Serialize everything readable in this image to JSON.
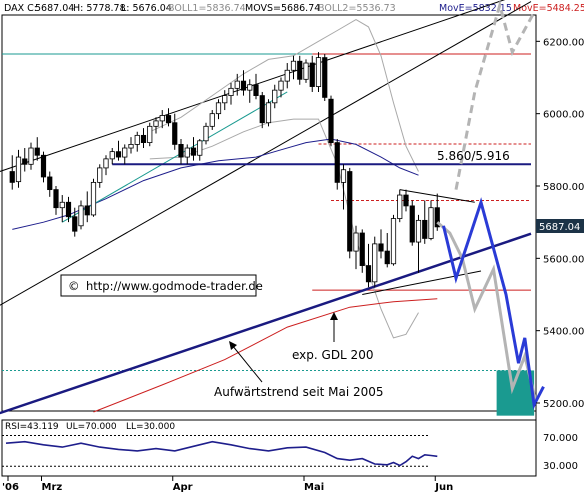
{
  "header": {
    "symbol": "DAX C:",
    "close": "5687.04",
    "high": "H: 5778.78",
    "low": "L: 5676.04",
    "boll1": "BOLL1=5836.74",
    "movs": "MOVS=5686.74",
    "boll2": "BOLL2=5536.73",
    "move_a": "MovE=5832.15",
    "move_b": "MovE=5484.25"
  },
  "colors": {
    "background": "#ffffff",
    "candle_up": "#ffffff",
    "candle_down": "#000000",
    "trend_navy": "#1a1a80",
    "projection_blue": "#2a3bd6",
    "projection_grey": "#b4b4b4",
    "ma200_red": "#cc1f1f",
    "bollinger_grey": "#a9a9a9",
    "mov_blue": "#1e1e8c",
    "teal": "#1a9a90",
    "price_marker": "#1c3347"
  },
  "chart_data": {
    "type": "candlestick",
    "title": "DAX",
    "y_axis": {
      "ticks": [
        5200,
        5400,
        5600,
        5800,
        6000,
        6200
      ],
      "tick_labels": [
        "5200.00",
        "5400.00",
        "5600.00",
        "5800.00",
        "6000.00",
        "6200.00"
      ],
      "range": [
        5155,
        6330
      ],
      "side": "right"
    },
    "x_axis": {
      "labels": [
        "'06",
        "Mrz",
        "Apr",
        "Mai",
        "Jun"
      ],
      "positions": [
        0,
        6,
        27,
        48,
        69
      ]
    },
    "last_price": "5687.04",
    "ohlc": [
      {
        "i": 1,
        "o": 5840,
        "h": 5885,
        "l": 5790,
        "c": 5810
      },
      {
        "i": 2,
        "o": 5812,
        "h": 5900,
        "l": 5795,
        "c": 5880
      },
      {
        "i": 3,
        "o": 5875,
        "h": 5905,
        "l": 5840,
        "c": 5860
      },
      {
        "i": 4,
        "o": 5860,
        "h": 5920,
        "l": 5845,
        "c": 5905
      },
      {
        "i": 5,
        "o": 5905,
        "h": 5935,
        "l": 5870,
        "c": 5885
      },
      {
        "i": 6,
        "o": 5885,
        "h": 5895,
        "l": 5810,
        "c": 5825
      },
      {
        "i": 7,
        "o": 5825,
        "h": 5840,
        "l": 5770,
        "c": 5790
      },
      {
        "i": 8,
        "o": 5790,
        "h": 5800,
        "l": 5720,
        "c": 5740
      },
      {
        "i": 9,
        "o": 5740,
        "h": 5775,
        "l": 5700,
        "c": 5755
      },
      {
        "i": 10,
        "o": 5755,
        "h": 5770,
        "l": 5700,
        "c": 5715
      },
      {
        "i": 11,
        "o": 5715,
        "h": 5740,
        "l": 5660,
        "c": 5675
      },
      {
        "i": 12,
        "o": 5690,
        "h": 5760,
        "l": 5680,
        "c": 5745
      },
      {
        "i": 13,
        "o": 5745,
        "h": 5785,
        "l": 5700,
        "c": 5720
      },
      {
        "i": 14,
        "o": 5720,
        "h": 5820,
        "l": 5715,
        "c": 5810
      },
      {
        "i": 15,
        "o": 5810,
        "h": 5860,
        "l": 5795,
        "c": 5850
      },
      {
        "i": 16,
        "o": 5850,
        "h": 5885,
        "l": 5830,
        "c": 5875
      },
      {
        "i": 17,
        "o": 5875,
        "h": 5905,
        "l": 5860,
        "c": 5895
      },
      {
        "i": 18,
        "o": 5895,
        "h": 5925,
        "l": 5870,
        "c": 5880
      },
      {
        "i": 19,
        "o": 5880,
        "h": 5915,
        "l": 5860,
        "c": 5905
      },
      {
        "i": 20,
        "o": 5905,
        "h": 5935,
        "l": 5890,
        "c": 5915
      },
      {
        "i": 21,
        "o": 5915,
        "h": 5950,
        "l": 5895,
        "c": 5940
      },
      {
        "i": 22,
        "o": 5940,
        "h": 5960,
        "l": 5905,
        "c": 5920
      },
      {
        "i": 23,
        "o": 5920,
        "h": 5975,
        "l": 5910,
        "c": 5965
      },
      {
        "i": 24,
        "o": 5965,
        "h": 5990,
        "l": 5945,
        "c": 5980
      },
      {
        "i": 25,
        "o": 5980,
        "h": 6010,
        "l": 5960,
        "c": 5995
      },
      {
        "i": 26,
        "o": 5995,
        "h": 6015,
        "l": 5965,
        "c": 5975
      },
      {
        "i": 27,
        "o": 5975,
        "h": 6000,
        "l": 5900,
        "c": 5915
      },
      {
        "i": 28,
        "o": 5915,
        "h": 5930,
        "l": 5860,
        "c": 5880
      },
      {
        "i": 29,
        "o": 5880,
        "h": 5915,
        "l": 5860,
        "c": 5905
      },
      {
        "i": 30,
        "o": 5905,
        "h": 5935,
        "l": 5870,
        "c": 5885
      },
      {
        "i": 31,
        "o": 5885,
        "h": 5930,
        "l": 5870,
        "c": 5925
      },
      {
        "i": 32,
        "o": 5925,
        "h": 5975,
        "l": 5915,
        "c": 5965
      },
      {
        "i": 33,
        "o": 5965,
        "h": 6010,
        "l": 5955,
        "c": 6000
      },
      {
        "i": 34,
        "o": 6000,
        "h": 6040,
        "l": 5985,
        "c": 6030
      },
      {
        "i": 35,
        "o": 6030,
        "h": 6065,
        "l": 6010,
        "c": 6050
      },
      {
        "i": 36,
        "o": 6050,
        "h": 6085,
        "l": 6025,
        "c": 6070
      },
      {
        "i": 37,
        "o": 6070,
        "h": 6110,
        "l": 6050,
        "c": 6090
      },
      {
        "i": 38,
        "o": 6090,
        "h": 6120,
        "l": 6050,
        "c": 6065
      },
      {
        "i": 39,
        "o": 6065,
        "h": 6095,
        "l": 6030,
        "c": 6080
      },
      {
        "i": 40,
        "o": 6080,
        "h": 6110,
        "l": 6040,
        "c": 6050
      },
      {
        "i": 41,
        "o": 6050,
        "h": 6060,
        "l": 5960,
        "c": 5975
      },
      {
        "i": 42,
        "o": 5975,
        "h": 6040,
        "l": 5965,
        "c": 6030
      },
      {
        "i": 43,
        "o": 6030,
        "h": 6080,
        "l": 6015,
        "c": 6065
      },
      {
        "i": 44,
        "o": 6065,
        "h": 6100,
        "l": 6045,
        "c": 6090
      },
      {
        "i": 45,
        "o": 6090,
        "h": 6140,
        "l": 6070,
        "c": 6120
      },
      {
        "i": 46,
        "o": 6120,
        "h": 6160,
        "l": 6095,
        "c": 6145
      },
      {
        "i": 47,
        "o": 6145,
        "h": 6160,
        "l": 6080,
        "c": 6095
      },
      {
        "i": 48,
        "o": 6095,
        "h": 6150,
        "l": 6085,
        "c": 6140
      },
      {
        "i": 49,
        "o": 6140,
        "h": 6160,
        "l": 6060,
        "c": 6075
      },
      {
        "i": 50,
        "o": 6075,
        "h": 6170,
        "l": 6060,
        "c": 6155
      },
      {
        "i": 51,
        "o": 6155,
        "h": 6165,
        "l": 6035,
        "c": 6045
      },
      {
        "i": 52,
        "o": 6040,
        "h": 6050,
        "l": 5910,
        "c": 5920
      },
      {
        "i": 53,
        "o": 5920,
        "h": 5930,
        "l": 5790,
        "c": 5810
      },
      {
        "i": 54,
        "o": 5810,
        "h": 5860,
        "l": 5735,
        "c": 5845
      },
      {
        "i": 55,
        "o": 5840,
        "h": 5850,
        "l": 5600,
        "c": 5620
      },
      {
        "i": 56,
        "o": 5620,
        "h": 5690,
        "l": 5570,
        "c": 5670
      },
      {
        "i": 57,
        "o": 5670,
        "h": 5680,
        "l": 5560,
        "c": 5580
      },
      {
        "i": 58,
        "o": 5580,
        "h": 5640,
        "l": 5520,
        "c": 5535
      },
      {
        "i": 59,
        "o": 5535,
        "h": 5660,
        "l": 5520,
        "c": 5640
      },
      {
        "i": 60,
        "o": 5640,
        "h": 5680,
        "l": 5600,
        "c": 5620
      },
      {
        "i": 61,
        "o": 5620,
        "h": 5670,
        "l": 5575,
        "c": 5585
      },
      {
        "i": 62,
        "o": 5585,
        "h": 5720,
        "l": 5580,
        "c": 5710
      },
      {
        "i": 63,
        "o": 5710,
        "h": 5790,
        "l": 5700,
        "c": 5775
      },
      {
        "i": 64,
        "o": 5775,
        "h": 5790,
        "l": 5730,
        "c": 5745
      },
      {
        "i": 65,
        "o": 5745,
        "h": 5760,
        "l": 5635,
        "c": 5645
      },
      {
        "i": 66,
        "o": 5645,
        "h": 5720,
        "l": 5560,
        "c": 5705
      },
      {
        "i": 67,
        "o": 5705,
        "h": 5760,
        "l": 5640,
        "c": 5655
      },
      {
        "i": 68,
        "o": 5655,
        "h": 5760,
        "l": 5650,
        "c": 5740
      },
      {
        "i": 69,
        "o": 5740,
        "h": 5779,
        "l": 5676,
        "c": 5687
      }
    ],
    "moving_average_blue": [
      [
        1,
        5680
      ],
      [
        6,
        5700
      ],
      [
        10,
        5720
      ],
      [
        16,
        5765
      ],
      [
        22,
        5815
      ],
      [
        28,
        5850
      ],
      [
        34,
        5870
      ],
      [
        40,
        5880
      ],
      [
        44,
        5900
      ],
      [
        48,
        5920
      ],
      [
        52,
        5930
      ],
      [
        56,
        5915
      ],
      [
        60,
        5880
      ],
      [
        63,
        5850
      ],
      [
        66,
        5830
      ]
    ],
    "bollinger_upper": [
      [
        23,
        5950
      ],
      [
        28,
        5990
      ],
      [
        33,
        6050
      ],
      [
        38,
        6110
      ],
      [
        42,
        6150
      ],
      [
        46,
        6160
      ],
      [
        50,
        6200
      ],
      [
        53,
        6230
      ],
      [
        56,
        6260
      ],
      [
        58,
        6240
      ],
      [
        60,
        6160
      ],
      [
        62,
        6030
      ],
      [
        64,
        5910
      ],
      [
        66,
        5840
      ]
    ],
    "bollinger_lower": [
      [
        23,
        5875
      ],
      [
        28,
        5880
      ],
      [
        33,
        5910
      ],
      [
        38,
        5950
      ],
      [
        42,
        5975
      ],
      [
        46,
        5985
      ],
      [
        50,
        5985
      ],
      [
        53,
        5860
      ],
      [
        56,
        5650
      ],
      [
        58,
        5560
      ],
      [
        60,
        5460
      ],
      [
        62,
        5380
      ],
      [
        64,
        5390
      ],
      [
        66,
        5450
      ]
    ],
    "ma200_red": [
      [
        14,
        5175
      ],
      [
        25,
        5250
      ],
      [
        35,
        5320
      ],
      [
        45,
        5410
      ],
      [
        55,
        5465
      ],
      [
        62,
        5480
      ],
      [
        69,
        5488
      ]
    ],
    "long_trendline_navy": [
      [
        -1,
        5172
      ],
      [
        84,
        5668
      ]
    ],
    "channel_upper": [
      [
        -1,
        5840
      ],
      [
        84,
        6340
      ]
    ],
    "channel_lower": [
      [
        -1,
        5470
      ],
      [
        84,
        6310
      ]
    ],
    "resistance_5860_5916": [
      [
        17,
        5860
      ],
      [
        84,
        5860
      ]
    ],
    "horizontal_levels": [
      {
        "value": 6165,
        "color": "#cc1f1f",
        "from": 49,
        "to": 84
      },
      {
        "value": 5916,
        "color": "#cc1f1f",
        "from": 50,
        "to": 84,
        "dashed": true
      },
      {
        "value": 5760,
        "color": "#cc1f1f",
        "from": 52,
        "to": 84,
        "dashed": true
      },
      {
        "value": 5512,
        "color": "#cc1f1f",
        "from": 49,
        "to": 84
      },
      {
        "value": 6165,
        "color": "#1a9a90",
        "from": -1,
        "to": 49
      },
      {
        "value": 5290,
        "color": "#1a9a90",
        "from": -1,
        "to": 84,
        "dotted": true
      }
    ],
    "projection_blue": [
      [
        70,
        5690
      ],
      [
        72,
        5545
      ],
      [
        74,
        5650
      ],
      [
        76,
        5755
      ],
      [
        80,
        5500
      ],
      [
        82,
        5310
      ],
      [
        83,
        5380
      ],
      [
        84.5,
        5195
      ],
      [
        86,
        5245
      ]
    ],
    "projection_grey": [
      [
        69,
        5700
      ],
      [
        71,
        5670
      ],
      [
        73,
        5600
      ],
      [
        75,
        5460
      ],
      [
        78,
        5570
      ],
      [
        81,
        5240
      ],
      [
        83,
        5330
      ],
      [
        84.7,
        5210
      ]
    ],
    "projection_grey_dashed": [
      [
        72,
        5790
      ],
      [
        75,
        6060
      ],
      [
        79,
        6300
      ],
      [
        81,
        6170
      ],
      [
        84.5,
        6280
      ]
    ],
    "triangle_lines": [
      [
        [
          63,
          5790
        ],
        [
          75,
          5755
        ]
      ],
      [
        [
          57,
          5500
        ],
        [
          76,
          5565
        ]
      ]
    ],
    "teal_box": {
      "from": 78.5,
      "to": 84.5,
      "top": 5290,
      "bottom": 5165
    },
    "annotations": {
      "resistance": "5.860/5.916",
      "ma200": "exp. GDL 200",
      "trend": "Aufwärtstrend seit Mai 2005",
      "copyright": "http://www.godmode-trader.de"
    },
    "rsi": {
      "label": "RSI=43.119",
      "ul_label": "UL=70.000",
      "ll_label": "LL=30.000",
      "upper": 70,
      "lower": 30,
      "range": [
        20,
        85
      ],
      "tick_labels": [
        "70.000",
        "30.000"
      ],
      "values": [
        [
          0,
          60
        ],
        [
          3,
          62
        ],
        [
          6,
          58
        ],
        [
          9,
          55
        ],
        [
          12,
          60
        ],
        [
          15,
          55
        ],
        [
          18,
          52
        ],
        [
          21,
          50
        ],
        [
          24,
          53
        ],
        [
          27,
          50
        ],
        [
          30,
          56
        ],
        [
          33,
          62
        ],
        [
          36,
          58
        ],
        [
          39,
          53
        ],
        [
          42,
          50
        ],
        [
          45,
          54
        ],
        [
          48,
          55
        ],
        [
          51,
          48
        ],
        [
          53,
          40
        ],
        [
          55,
          38
        ],
        [
          57,
          40
        ],
        [
          59,
          33
        ],
        [
          61,
          32
        ],
        [
          62,
          35
        ],
        [
          63,
          31
        ],
        [
          64,
          36
        ],
        [
          65,
          43
        ],
        [
          66,
          40
        ],
        [
          67,
          45
        ],
        [
          68,
          44
        ],
        [
          69,
          43
        ]
      ]
    }
  }
}
